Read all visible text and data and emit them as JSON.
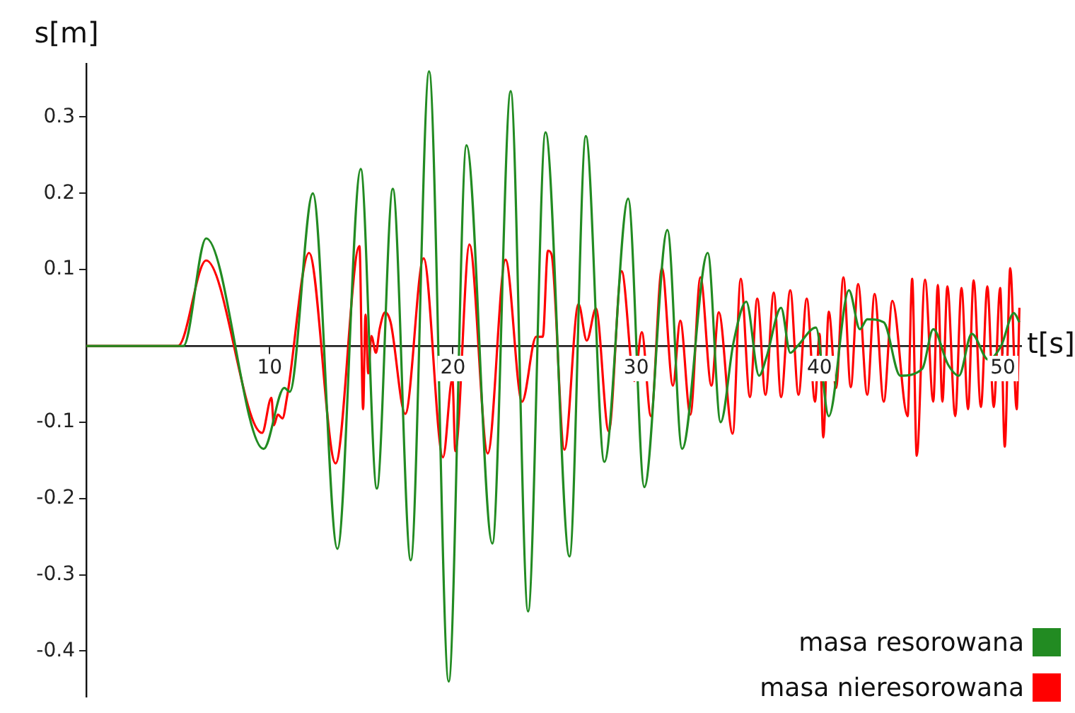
{
  "chart_data": {
    "type": "line",
    "xlabel": "t[s]",
    "ylabel": "s[m]",
    "xlim": [
      0,
      51
    ],
    "ylim": [
      -0.46,
      0.37
    ],
    "xticks": [
      10,
      20,
      30,
      40,
      50
    ],
    "yticks": [
      -0.4,
      -0.3,
      -0.2,
      -0.1,
      0.1,
      0.2,
      0.3
    ],
    "grid": false,
    "legend": "bottom right",
    "marker": "none",
    "line_style": "solid",
    "series": [
      {
        "name": "masa resorowana",
        "color": "#228b22",
        "x": [
          0,
          5.3,
          6.54,
          9.67,
          10.8,
          11.1,
          12.36,
          13.7,
          14.97,
          15.85,
          16.72,
          17.7,
          18.7,
          19.77,
          20.74,
          22.15,
          23.15,
          24.1,
          25.05,
          26.36,
          27.25,
          28.26,
          29.56,
          30.44,
          31.7,
          32.5,
          33.9,
          34.6,
          35.3,
          36.0,
          36.7,
          37.1,
          37.9,
          38.4,
          38.8,
          39.8,
          40.5,
          41.6,
          42.2,
          42.6,
          43.5,
          44.4,
          45.6,
          46.2,
          47.0,
          47.6,
          48.3,
          49.2,
          49.9,
          50.6,
          50.9
        ],
        "values": [
          0,
          0,
          0.141,
          -0.135,
          -0.055,
          -0.06,
          0.2,
          -0.266,
          0.232,
          -0.187,
          0.206,
          -0.281,
          0.36,
          -0.44,
          0.263,
          -0.259,
          0.334,
          -0.348,
          0.28,
          -0.276,
          0.275,
          -0.152,
          0.193,
          -0.185,
          0.152,
          -0.135,
          0.122,
          -0.1,
          0.004,
          0.058,
          -0.039,
          -0.015,
          0.05,
          -0.009,
          0,
          0.024,
          -0.092,
          0.073,
          0.022,
          0.035,
          0.031,
          -0.039,
          -0.03,
          0.022,
          -0.024,
          -0.039,
          0.016,
          -0.018,
          0,
          0.043,
          0.031
        ]
      },
      {
        "name": "masa nieresorowana",
        "color": "#ff0000",
        "x": [
          0,
          5.0,
          6.54,
          9.59,
          10.1,
          10.23,
          10.45,
          10.7,
          10.95,
          12.15,
          13.6,
          14.9,
          15.1,
          15.23,
          15.38,
          15.55,
          15.8,
          16.0,
          16.3,
          16.6,
          17.4,
          18.4,
          19.46,
          19.97,
          20.13,
          20.9,
          21.9,
          22.87,
          23.77,
          24.54,
          24.9,
          25.18,
          25.38,
          26.08,
          26.85,
          27.3,
          27.8,
          28.5,
          29.2,
          29.9,
          30.3,
          30.8,
          31.4,
          32.0,
          32.4,
          32.95,
          33.5,
          34.1,
          34.5,
          35.26,
          35.7,
          36.2,
          36.6,
          37.05,
          37.5,
          37.9,
          38.4,
          38.85,
          39.3,
          39.75,
          40.0,
          40.2,
          40.5,
          40.9,
          41.3,
          41.7,
          42.1,
          42.6,
          43.0,
          43.5,
          43.97,
          44.8,
          45.05,
          45.3,
          45.75,
          46.2,
          46.45,
          46.7,
          46.97,
          47.4,
          47.74,
          48.1,
          48.4,
          48.8,
          49.15,
          49.5,
          49.85,
          50.1,
          50.4,
          50.75,
          50.9
        ],
        "values": [
          0,
          0,
          0.112,
          -0.114,
          -0.068,
          -0.104,
          -0.09,
          -0.095,
          -0.067,
          0.122,
          -0.154,
          0.131,
          -0.083,
          0.041,
          -0.036,
          0.013,
          -0.009,
          0.022,
          0.044,
          0.031,
          -0.089,
          0.115,
          -0.146,
          -0.043,
          -0.138,
          0.133,
          -0.141,
          0.113,
          -0.073,
          0.012,
          0.012,
          0.125,
          0.12,
          -0.136,
          0.055,
          0.007,
          0.049,
          -0.112,
          0.098,
          -0.046,
          0.018,
          -0.092,
          0.102,
          -0.052,
          0.033,
          -0.09,
          0.09,
          -0.052,
          0.044,
          -0.115,
          0.088,
          -0.067,
          0.062,
          -0.064,
          0.07,
          -0.067,
          0.073,
          -0.064,
          0.062,
          -0.073,
          0.016,
          -0.12,
          0.045,
          -0.055,
          0.09,
          -0.054,
          0.081,
          -0.064,
          0.068,
          -0.073,
          0.059,
          -0.092,
          0.088,
          -0.144,
          0.087,
          -0.073,
          0.08,
          -0.073,
          0.078,
          -0.092,
          0.076,
          -0.083,
          0.086,
          -0.08,
          0.078,
          -0.08,
          0.076,
          -0.132,
          0.102,
          -0.083,
          0.05
        ]
      }
    ]
  }
}
